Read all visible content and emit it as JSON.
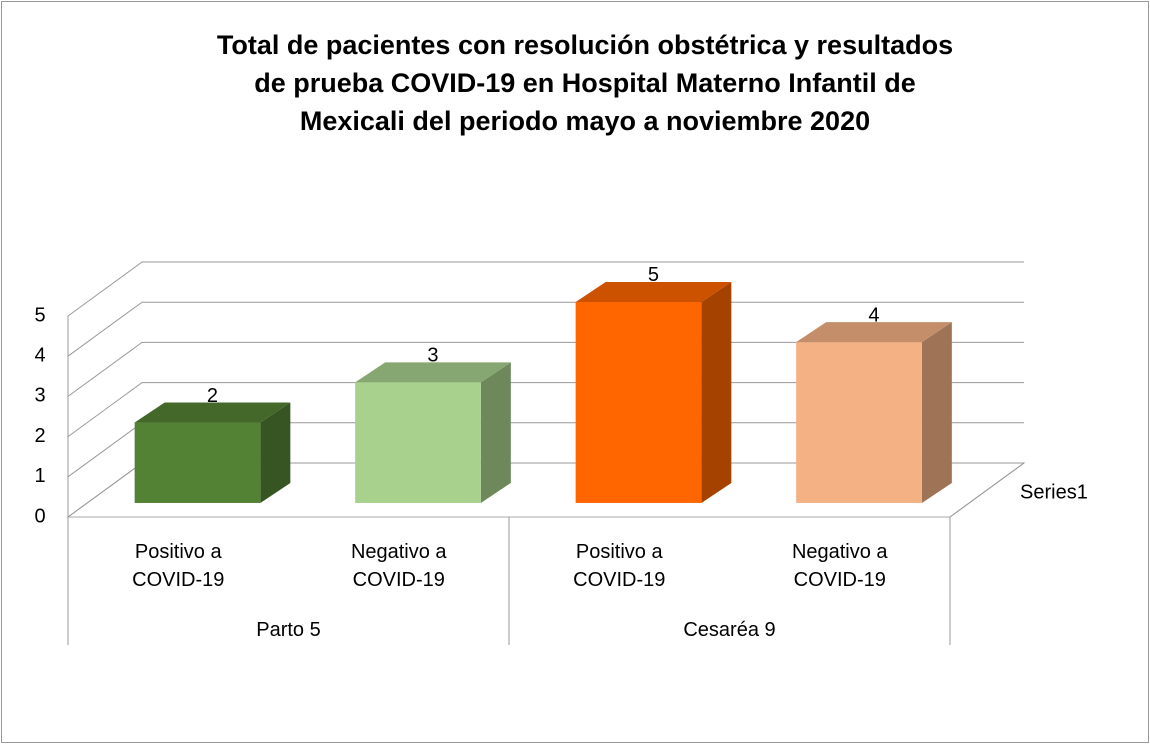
{
  "chart_data": {
    "type": "bar3d",
    "title": "Total de pacientes con resolución obstétrica y resultados\nde prueba COVID-19 en Hospital Materno Infantil de\nMexicali del periodo mayo a noviembre 2020",
    "categories": [
      "Positivo a COVID-19",
      "Negativo a COVID-19",
      "Positivo a COVID-19",
      "Negativo a COVID-19"
    ],
    "group_labels": [
      "Parto 5",
      "Cesaréa 9"
    ],
    "series": [
      {
        "name": "Series1",
        "values": [
          2,
          3,
          5,
          4
        ],
        "colors": [
          "#548235",
          "#a9d18e",
          "#ff6600",
          "#f4b183"
        ]
      }
    ],
    "ylim": [
      0,
      5
    ],
    "yticks": [
      0,
      1,
      2,
      3,
      4,
      5
    ],
    "grid": true
  }
}
